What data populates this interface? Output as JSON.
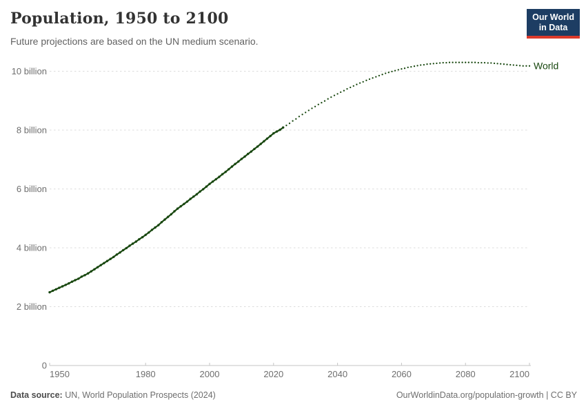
{
  "header": {
    "title": "Population, 1950 to 2100",
    "subtitle": "Future projections are based on the UN medium scenario.",
    "logo": {
      "line1": "Our World",
      "line2": "in Data",
      "bg_color": "#1d3d63",
      "accent_color": "#dc3a2b"
    }
  },
  "chart_data": {
    "type": "line",
    "title": "Population, 1950 to 2100",
    "xlabel": "",
    "ylabel": "",
    "unit": "billion people",
    "xlim": [
      1950,
      2100
    ],
    "ylim": [
      0,
      10
    ],
    "grid": "horizontal-dashed",
    "legend_position": "right-of-line-end",
    "entity_label": "World",
    "x_ticks": [
      1950,
      1980,
      2000,
      2020,
      2040,
      2060,
      2080,
      2100
    ],
    "y_ticks": [
      {
        "value": 0,
        "label": "0"
      },
      {
        "value": 2,
        "label": "2 billion"
      },
      {
        "value": 4,
        "label": "4 billion"
      },
      {
        "value": 6,
        "label": "6 billion"
      },
      {
        "value": 8,
        "label": "8 billion"
      },
      {
        "value": 10,
        "label": "10 billion"
      }
    ],
    "series": [
      {
        "name": "World",
        "segment": "estimates",
        "line_style": "solid-with-markers",
        "color": "#18470f",
        "start_year": 1950,
        "step_years": 1,
        "values": [
          2.49,
          2.54,
          2.59,
          2.64,
          2.69,
          2.74,
          2.79,
          2.85,
          2.9,
          2.95,
          3.02,
          3.07,
          3.13,
          3.2,
          3.27,
          3.34,
          3.41,
          3.48,
          3.55,
          3.62,
          3.69,
          3.77,
          3.84,
          3.92,
          3.99,
          4.07,
          4.14,
          4.21,
          4.29,
          4.36,
          4.44,
          4.52,
          4.61,
          4.69,
          4.77,
          4.87,
          4.96,
          5.05,
          5.14,
          5.24,
          5.33,
          5.41,
          5.49,
          5.57,
          5.66,
          5.74,
          5.82,
          5.91,
          5.99,
          6.08,
          6.17,
          6.25,
          6.33,
          6.41,
          6.5,
          6.58,
          6.67,
          6.76,
          6.85,
          6.93,
          7.02,
          7.1,
          7.19,
          7.27,
          7.36,
          7.44,
          7.53,
          7.62,
          7.71,
          7.8,
          7.89,
          7.95,
          8.01,
          8.09
        ]
      },
      {
        "name": "World",
        "segment": "UN medium projection",
        "line_style": "dotted",
        "color": "#18470f",
        "start_year": 2024,
        "step_years": 1,
        "values": [
          8.16,
          8.23,
          8.31,
          8.38,
          8.46,
          8.53,
          8.6,
          8.67,
          8.74,
          8.8,
          8.87,
          8.93,
          8.99,
          9.06,
          9.12,
          9.18,
          9.23,
          9.29,
          9.34,
          9.4,
          9.45,
          9.5,
          9.55,
          9.6,
          9.64,
          9.69,
          9.73,
          9.77,
          9.81,
          9.85,
          9.89,
          9.93,
          9.96,
          9.99,
          10.02,
          10.05,
          10.08,
          10.1,
          10.13,
          10.15,
          10.17,
          10.19,
          10.21,
          10.22,
          10.24,
          10.25,
          10.26,
          10.27,
          10.28,
          10.29,
          10.29,
          10.3,
          10.3,
          10.3,
          10.3,
          10.3,
          10.3,
          10.3,
          10.3,
          10.3,
          10.29,
          10.29,
          10.29,
          10.28,
          10.28,
          10.27,
          10.26,
          10.25,
          10.24,
          10.23,
          10.22,
          10.21,
          10.2,
          10.19,
          10.18,
          10.18,
          10.18
        ]
      }
    ]
  },
  "footer": {
    "datasource_label": "Data source:",
    "datasource_text": " UN, World Population Prospects (2024)",
    "credit": "OurWorldinData.org/population-growth | CC BY"
  }
}
